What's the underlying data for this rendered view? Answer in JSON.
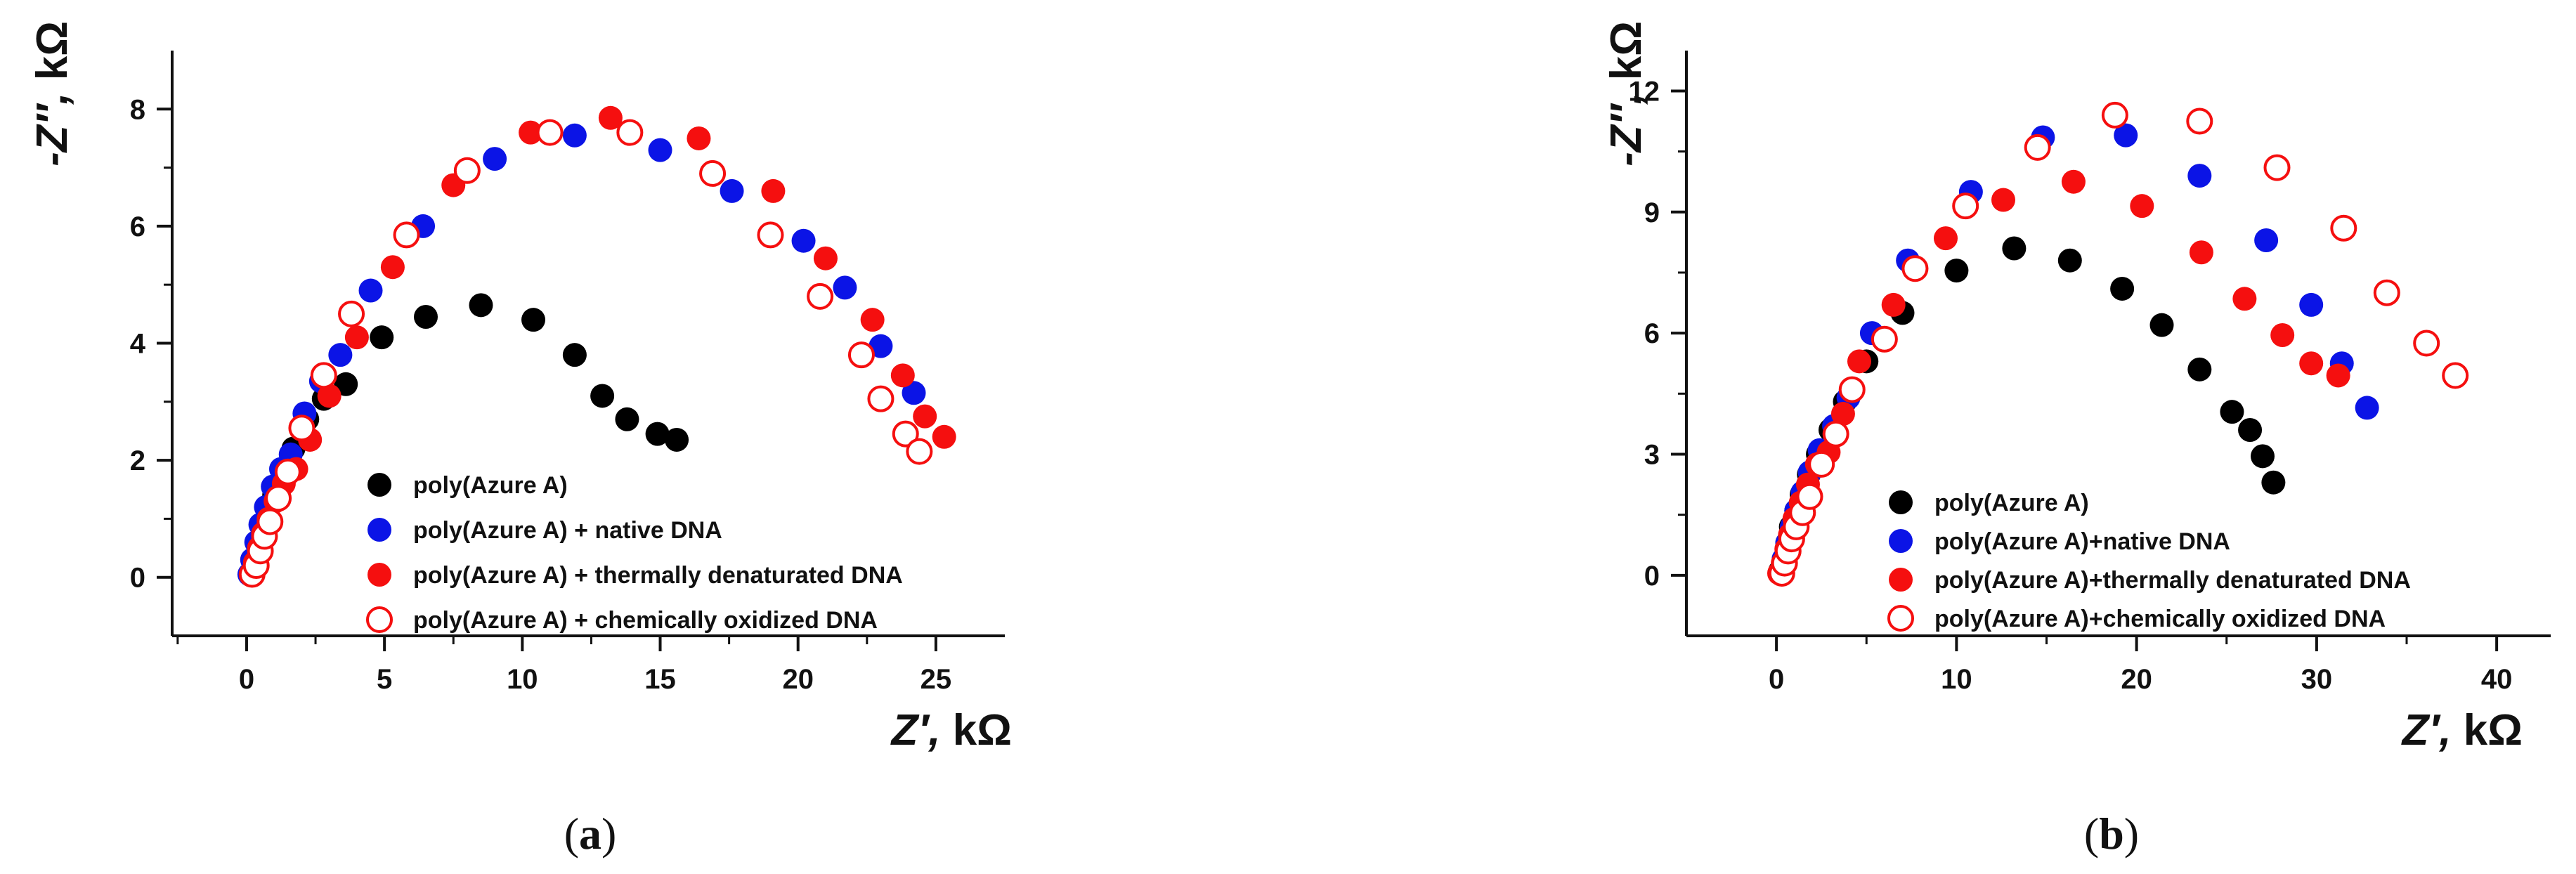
{
  "chart_data": [
    {
      "type": "scatter",
      "panel_label": "a",
      "xlabel": "Z′, kΩ",
      "ylabel": "-Z″, kΩ",
      "xlim": [
        -2.7,
        27.5
      ],
      "ylim": [
        -1.0,
        9.0
      ],
      "xticks": [
        0,
        5,
        10,
        15,
        20,
        25
      ],
      "yticks": [
        0,
        2,
        4,
        6,
        8
      ],
      "legend_position": "lower-center",
      "series": [
        {
          "name": "poly(Azure A)",
          "color": "#000000",
          "filled": true,
          "x": [
            0.2,
            0.3,
            0.45,
            0.6,
            0.8,
            1.0,
            1.3,
            1.7,
            2.2,
            2.8,
            3.6,
            4.9,
            6.5,
            8.5,
            10.4,
            11.9,
            12.9,
            13.8,
            14.9,
            15.6
          ],
          "y": [
            0.1,
            0.25,
            0.45,
            0.7,
            1.0,
            1.4,
            1.8,
            2.2,
            2.7,
            3.05,
            3.3,
            4.1,
            4.45,
            4.65,
            4.4,
            3.8,
            3.1,
            2.7,
            2.45,
            2.35
          ]
        },
        {
          "name": "poly(Azure A) + native DNA",
          "color": "#0b14e6",
          "filled": true,
          "x": [
            0.1,
            0.2,
            0.35,
            0.5,
            0.7,
            0.95,
            1.25,
            1.6,
            2.1,
            2.7,
            3.4,
            4.5,
            6.4,
            9.0,
            11.9,
            15.0,
            17.6,
            20.2,
            21.7,
            23.0,
            24.2
          ],
          "y": [
            0.05,
            0.3,
            0.6,
            0.9,
            1.2,
            1.55,
            1.85,
            2.1,
            2.8,
            3.35,
            3.8,
            4.9,
            6.0,
            7.15,
            7.55,
            7.3,
            6.6,
            5.75,
            4.95,
            3.95,
            3.15
          ]
        },
        {
          "name": "poly(Azure A) + thermally denaturated DNA",
          "color": "#f50f0f",
          "filled": true,
          "x": [
            0.15,
            0.3,
            0.45,
            0.6,
            0.8,
            1.05,
            1.35,
            1.8,
            2.3,
            3.0,
            4.0,
            5.3,
            7.5,
            10.3,
            13.2,
            16.4,
            19.1,
            21.0,
            22.7,
            23.8,
            24.6,
            25.3
          ],
          "y": [
            0.05,
            0.25,
            0.5,
            0.75,
            1.0,
            1.3,
            1.6,
            1.85,
            2.35,
            3.1,
            4.1,
            5.3,
            6.7,
            7.6,
            7.85,
            7.5,
            6.6,
            5.45,
            4.4,
            3.45,
            2.75,
            2.4
          ]
        },
        {
          "name": "poly(Azure A) + chemically oxidized DNA",
          "color": "#f50f0f",
          "filled": false,
          "x": [
            0.2,
            0.35,
            0.5,
            0.65,
            0.85,
            1.15,
            1.5,
            2.0,
            2.8,
            3.8,
            5.8,
            8.0,
            11.0,
            13.9,
            16.9,
            19.0,
            20.8,
            22.3,
            23.0,
            23.9,
            24.4
          ],
          "y": [
            0.05,
            0.2,
            0.45,
            0.7,
            0.95,
            1.35,
            1.8,
            2.55,
            3.45,
            4.5,
            5.85,
            6.95,
            7.6,
            7.6,
            6.9,
            5.85,
            4.8,
            3.8,
            3.05,
            2.45,
            2.15
          ]
        }
      ]
    },
    {
      "type": "scatter",
      "panel_label": "b",
      "xlabel": "Z′, kΩ",
      "ylabel": "-Z″, kΩ",
      "xlim": [
        -5.0,
        43.0
      ],
      "ylim": [
        -1.5,
        13.0
      ],
      "xticks": [
        0,
        10,
        20,
        30,
        40
      ],
      "yticks": [
        0,
        3,
        6,
        9,
        12
      ],
      "legend_position": "lower-center",
      "series": [
        {
          "name": "poly(Azure A)",
          "color": "#000000",
          "filled": true,
          "x": [
            0.2,
            0.4,
            0.6,
            0.8,
            1.1,
            1.4,
            1.8,
            2.3,
            3.0,
            3.8,
            5.0,
            7.0,
            10.0,
            13.2,
            16.3,
            19.2,
            21.4,
            23.5,
            25.3,
            26.3,
            27.0,
            27.6
          ],
          "y": [
            0.1,
            0.4,
            0.8,
            1.2,
            1.6,
            2.0,
            2.5,
            3.0,
            3.6,
            4.3,
            5.3,
            6.5,
            7.55,
            8.1,
            7.8,
            7.1,
            6.2,
            5.1,
            4.05,
            3.6,
            2.95,
            2.3
          ]
        },
        {
          "name": "poly(Azure A)+native DNA",
          "color": "#0b14e6",
          "filled": true,
          "x": [
            0.2,
            0.4,
            0.6,
            0.85,
            1.1,
            1.45,
            1.85,
            2.4,
            3.2,
            4.0,
            5.3,
            7.3,
            10.8,
            14.8,
            19.4,
            23.5,
            27.2,
            29.7,
            31.4,
            32.8
          ],
          "y": [
            0.05,
            0.4,
            0.8,
            1.2,
            1.6,
            2.05,
            2.55,
            3.1,
            3.7,
            4.4,
            6.0,
            7.8,
            9.5,
            10.85,
            10.9,
            9.9,
            8.3,
            6.7,
            5.25,
            4.15
          ]
        },
        {
          "name": "poly(Azure A)+thermally denaturated DNA",
          "color": "#f50f0f",
          "filled": true,
          "x": [
            0.15,
            0.35,
            0.55,
            0.75,
            1.0,
            1.35,
            1.75,
            2.25,
            2.9,
            3.7,
            4.6,
            6.5,
            9.4,
            12.6,
            16.5,
            20.3,
            23.6,
            26.0,
            28.1,
            29.7,
            31.2
          ],
          "y": [
            0.05,
            0.3,
            0.65,
            1.0,
            1.4,
            1.8,
            2.25,
            2.75,
            3.05,
            4.0,
            5.3,
            6.7,
            8.35,
            9.3,
            9.75,
            9.15,
            8.0,
            6.85,
            5.95,
            5.25,
            4.95
          ]
        },
        {
          "name": "poly(Azure A)+chemically oxidized DNA",
          "color": "#f50f0f",
          "filled": false,
          "x": [
            0.3,
            0.45,
            0.65,
            0.85,
            1.1,
            1.45,
            1.85,
            2.5,
            3.3,
            4.2,
            6.0,
            7.7,
            10.5,
            14.5,
            18.8,
            23.5,
            27.8,
            31.5,
            33.9,
            36.1,
            37.7
          ],
          "y": [
            0.05,
            0.3,
            0.6,
            0.9,
            1.2,
            1.55,
            1.95,
            2.75,
            3.5,
            4.6,
            5.85,
            7.6,
            9.15,
            10.6,
            11.4,
            11.25,
            10.1,
            8.6,
            7.0,
            5.75,
            4.95
          ]
        }
      ]
    }
  ]
}
